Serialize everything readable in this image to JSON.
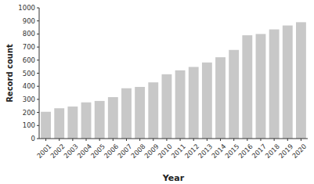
{
  "chart_data": {
    "type": "bar",
    "categories": [
      "2001",
      "2002",
      "2003",
      "2004",
      "2005",
      "2006",
      "2007",
      "2008",
      "2009",
      "2010",
      "2011",
      "2012",
      "2013",
      "2014",
      "2015",
      "2016",
      "2017",
      "2018",
      "2019",
      "2020"
    ],
    "values": [
      205,
      232,
      245,
      277,
      288,
      317,
      385,
      395,
      430,
      492,
      522,
      548,
      582,
      622,
      678,
      790,
      800,
      835,
      865,
      890
    ],
    "color": "#c8c8c8",
    "xlabel": "Year",
    "ylabel": "Record count",
    "ylim": [
      0,
      1000
    ],
    "yticks": [
      0,
      100,
      200,
      300,
      400,
      500,
      600,
      700,
      800,
      900,
      1000
    ],
    "grid": false
  }
}
